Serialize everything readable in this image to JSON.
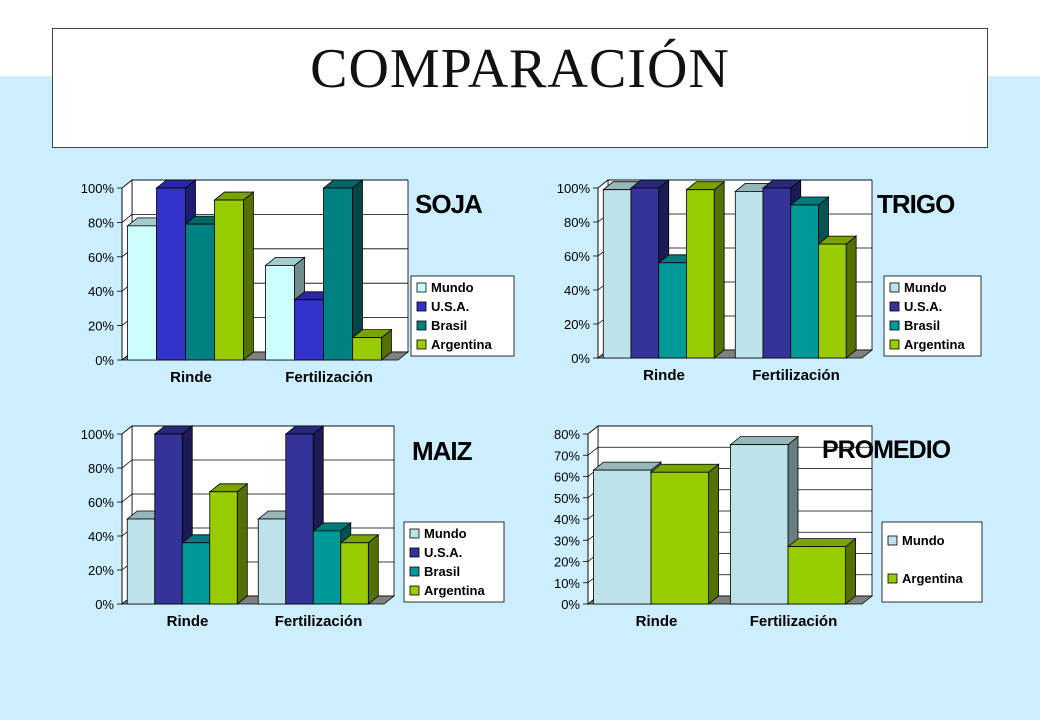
{
  "page": {
    "title": "COMPARACIÓN"
  },
  "colors": {
    "background": "#cceeff",
    "mundo_soja": "#ccffff",
    "mundo": "#bde3e8",
    "usa_soja": "#3333cc",
    "usa": "#333399",
    "brasil_soja": "#008080",
    "brasil": "#009999",
    "argentina": "#99cc00",
    "floor": "#808080"
  },
  "chart_data": [
    {
      "type": "bar",
      "title": "SOJA",
      "categories": [
        "Rinde",
        "Fertilización"
      ],
      "ylim": [
        0,
        1
      ],
      "yticks": [
        "0%",
        "20%",
        "40%",
        "60%",
        "80%",
        "100%"
      ],
      "series": [
        {
          "name": "Mundo",
          "values": [
            0.78,
            0.55
          ],
          "color": "#ccffff"
        },
        {
          "name": "U.S.A.",
          "values": [
            1.0,
            0.35
          ],
          "color": "#3333cc"
        },
        {
          "name": "Brasil",
          "values": [
            0.79,
            1.0
          ],
          "color": "#008080"
        },
        {
          "name": "Argentina",
          "values": [
            0.93,
            0.13
          ],
          "color": "#99cc00"
        }
      ],
      "legend": "right"
    },
    {
      "type": "bar",
      "title": "TRIGO",
      "categories": [
        "Rinde",
        "Fertilización"
      ],
      "ylim": [
        0,
        1
      ],
      "yticks": [
        "0%",
        "20%",
        "40%",
        "60%",
        "80%",
        "100%"
      ],
      "series": [
        {
          "name": "Mundo",
          "values": [
            0.99,
            0.98
          ],
          "color": "#bde3e8"
        },
        {
          "name": "U.S.A.",
          "values": [
            1.0,
            1.0
          ],
          "color": "#333399"
        },
        {
          "name": "Brasil",
          "values": [
            0.56,
            0.9
          ],
          "color": "#009999"
        },
        {
          "name": "Argentina",
          "values": [
            0.99,
            0.67
          ],
          "color": "#99cc00"
        }
      ],
      "legend": "right"
    },
    {
      "type": "bar",
      "title": "MAIZ",
      "categories": [
        "Rinde",
        "Fertilización"
      ],
      "ylim": [
        0,
        1
      ],
      "yticks": [
        "0%",
        "20%",
        "40%",
        "60%",
        "80%",
        "100%"
      ],
      "series": [
        {
          "name": "Mundo",
          "values": [
            0.5,
            0.5
          ],
          "color": "#bde3e8"
        },
        {
          "name": "U.S.A.",
          "values": [
            1.0,
            1.0
          ],
          "color": "#333399"
        },
        {
          "name": "Brasil",
          "values": [
            0.36,
            0.43
          ],
          "color": "#009999"
        },
        {
          "name": "Argentina",
          "values": [
            0.66,
            0.36
          ],
          "color": "#99cc00"
        }
      ],
      "legend": "right"
    },
    {
      "type": "bar",
      "title": "PROMEDIO",
      "categories": [
        "Rinde",
        "Fertilización"
      ],
      "ylim": [
        0,
        0.8
      ],
      "yticks": [
        "0%",
        "10%",
        "20%",
        "30%",
        "40%",
        "50%",
        "60%",
        "70%",
        "80%"
      ],
      "series": [
        {
          "name": "Mundo",
          "values": [
            0.63,
            0.75
          ],
          "color": "#bde3e8"
        },
        {
          "name": "Argentina",
          "values": [
            0.62,
            0.27
          ],
          "color": "#99cc00"
        }
      ],
      "legend": "right"
    }
  ]
}
